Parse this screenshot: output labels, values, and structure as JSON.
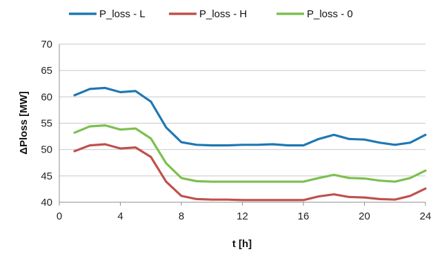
{
  "chart_data": {
    "type": "line",
    "title": "",
    "xlabel": "t [h]",
    "ylabel": "ΔPloss [MW]",
    "xlim": [
      0,
      24
    ],
    "ylim": [
      40,
      70
    ],
    "xticks": [
      0,
      4,
      8,
      12,
      16,
      20,
      24
    ],
    "yticks": [
      40,
      45,
      50,
      55,
      60,
      65,
      70
    ],
    "grid": "horizontal",
    "legend_position": "top",
    "x": [
      1,
      2,
      3,
      4,
      5,
      6,
      7,
      8,
      9,
      10,
      11,
      12,
      13,
      14,
      15,
      16,
      17,
      18,
      19,
      20,
      21,
      22,
      23,
      24
    ],
    "series": [
      {
        "name": "P_loss - L",
        "color": "#1f77b4",
        "values": [
          60.3,
          61.5,
          61.7,
          60.9,
          61.1,
          59.1,
          54.2,
          51.4,
          50.9,
          50.8,
          50.8,
          50.9,
          50.9,
          51.0,
          50.8,
          50.8,
          52.0,
          52.8,
          52.0,
          51.9,
          51.3,
          50.9,
          51.3,
          52.8
        ]
      },
      {
        "name": "P_loss - H",
        "color": "#c0504d",
        "values": [
          49.7,
          50.8,
          51.0,
          50.2,
          50.4,
          48.6,
          43.9,
          41.2,
          40.6,
          40.5,
          40.5,
          40.4,
          40.4,
          40.4,
          40.4,
          40.4,
          41.1,
          41.5,
          41.0,
          40.9,
          40.6,
          40.5,
          41.2,
          42.6
        ]
      },
      {
        "name": "P_loss - 0",
        "color": "#7cbf4f",
        "values": [
          53.2,
          54.4,
          54.6,
          53.8,
          54.0,
          52.1,
          47.4,
          44.6,
          44.0,
          43.9,
          43.9,
          43.9,
          43.9,
          43.9,
          43.9,
          43.9,
          44.6,
          45.2,
          44.6,
          44.5,
          44.1,
          43.9,
          44.6,
          46.0
        ]
      }
    ]
  }
}
